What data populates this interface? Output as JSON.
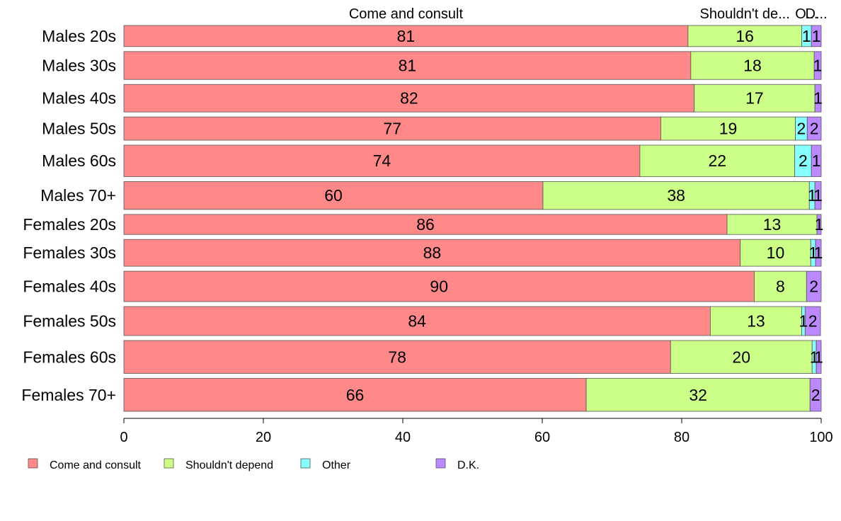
{
  "chart_data": {
    "type": "bar",
    "orientation": "horizontal",
    "stacked": true,
    "categories": [
      "Males 20s",
      "Males 30s",
      "Males 40s",
      "Males 50s",
      "Males 60s",
      "Males 70+",
      "Females 20s",
      "Females 30s",
      "Females 40s",
      "Females 50s",
      "Females 60s",
      "Females 70+"
    ],
    "bar_weights": [
      59,
      78,
      77,
      65,
      88,
      78,
      56,
      75,
      85,
      81,
      92,
      92
    ],
    "series": [
      {
        "name": "Come and consult",
        "color": "#ff8888",
        "values": [
          80.9,
          81.3,
          81.8,
          77.0,
          74.0,
          60.1,
          86.5,
          88.4,
          90.4,
          84.1,
          78.4,
          66.3
        ],
        "labels": [
          "81",
          "81",
          "82",
          "77",
          "74",
          "60",
          "86",
          "88",
          "90",
          "84",
          "78",
          "66"
        ]
      },
      {
        "name": "Shouldn't depend",
        "color": "#ccff88",
        "values": [
          16.3,
          17.7,
          17.3,
          19.3,
          22.2,
          38.2,
          12.9,
          10.1,
          7.5,
          13.1,
          20.3,
          32.1
        ],
        "labels": [
          "16",
          "18",
          "17",
          "19",
          "22",
          "38",
          "13",
          "10",
          "8",
          "13",
          "20",
          "32"
        ]
      },
      {
        "name": "Other",
        "color": "#88ffff",
        "values": [
          1.4,
          0.0,
          0.0,
          1.7,
          2.4,
          0.8,
          0.0,
          0.7,
          0.0,
          0.5,
          0.6,
          0.0
        ],
        "labels": [
          "1",
          "",
          "",
          "2",
          "2",
          "1",
          "",
          "1",
          "",
          "1",
          "1",
          ""
        ]
      },
      {
        "name": "D.K.",
        "color": "#bb88ff",
        "values": [
          1.4,
          1.0,
          0.9,
          2.0,
          1.4,
          0.9,
          0.6,
          0.8,
          2.1,
          2.2,
          0.7,
          1.6
        ],
        "labels": [
          "1",
          "1",
          "1",
          "2",
          "1",
          "1",
          "1",
          "1",
          "2",
          "2",
          "1",
          "2"
        ]
      }
    ],
    "top_labels": [
      "Come and consult",
      "Shouldn't de...",
      "O...",
      "D..."
    ],
    "xlim": [
      0,
      100
    ],
    "xticks": [
      "0",
      "20",
      "40",
      "60",
      "80",
      "100"
    ],
    "grid": false,
    "legend": {
      "placement": "bottom-left",
      "items": [
        "Come and consult",
        "Shouldn't depend",
        "Other",
        "D.K."
      ]
    }
  }
}
